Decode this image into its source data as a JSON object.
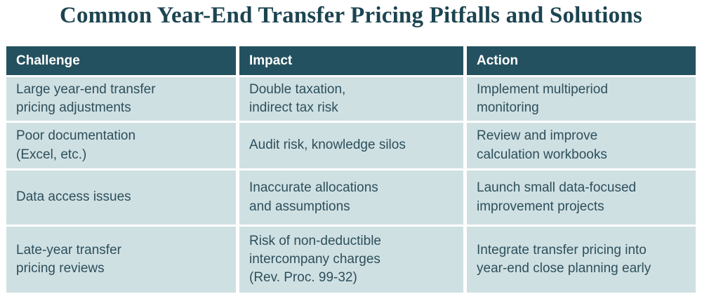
{
  "title": "Common Year-End Transfer Pricing Pitfalls and Solutions",
  "colors": {
    "header_bg": "#24515f",
    "cell_bg": "#cfe0e3",
    "header_text": "#ffffff",
    "cell_text": "#2d4f5b",
    "title_text": "#1c4451",
    "page_bg": "#ffffff"
  },
  "chart_data": {
    "type": "table",
    "title": "Common Year-End Transfer Pricing Pitfalls and Solutions",
    "columns": [
      "Challenge",
      "Impact",
      "Action"
    ],
    "rows": [
      [
        "Large year-end transfer\npricing adjustments",
        "Double taxation,\nindirect tax risk",
        "Implement multiperiod\nmonitoring"
      ],
      [
        "Poor documentation\n(Excel, etc.)",
        "Audit risk, knowledge silos",
        "Review and improve\ncalculation workbooks"
      ],
      [
        "Data access issues",
        "Inaccurate allocations\nand assumptions",
        "Launch small data-focused\nimprovement projects"
      ],
      [
        "Late-year transfer\npricing reviews",
        "Risk of non-deductible\nintercompany charges\n(Rev. Proc. 99-32)",
        "Integrate transfer pricing into\nyear-end close planning early"
      ]
    ]
  }
}
